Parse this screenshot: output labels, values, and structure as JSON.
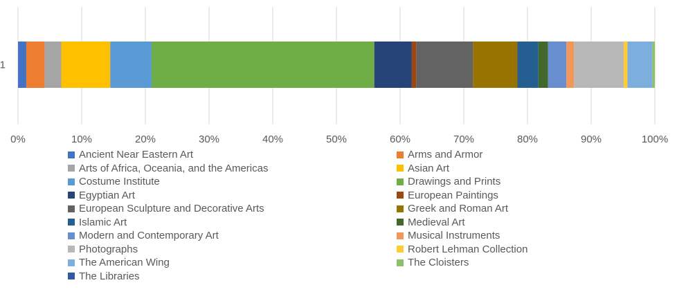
{
  "chart_data": {
    "type": "bar",
    "orientation": "horizontal",
    "stacking": "percent",
    "categories": [
      "1"
    ],
    "x_ticks": [
      "0%",
      "10%",
      "20%",
      "30%",
      "40%",
      "50%",
      "60%",
      "70%",
      "80%",
      "90%",
      "100%"
    ],
    "xlim": [
      0,
      100
    ],
    "grid": true,
    "legend_position": "bottom",
    "series": [
      {
        "name": "Ancient Near Eastern Art",
        "values": [
          1.3
        ],
        "color": "#4472C4"
      },
      {
        "name": "Arms and Armor",
        "values": [
          2.9
        ],
        "color": "#ED7D31"
      },
      {
        "name": "Arts of Africa, Oceania, and the Americas",
        "values": [
          2.6
        ],
        "color": "#A5A5A5"
      },
      {
        "name": "Asian Art",
        "values": [
          7.7
        ],
        "color": "#FFC000"
      },
      {
        "name": "Costume Institute",
        "values": [
          6.5
        ],
        "color": "#5B9BD5"
      },
      {
        "name": "Drawings and Prints",
        "values": [
          35.0
        ],
        "color": "#70AD47"
      },
      {
        "name": "Egyptian Art",
        "values": [
          5.9
        ],
        "color": "#264478"
      },
      {
        "name": "European Paintings",
        "values": [
          0.7
        ],
        "color": "#9E480E"
      },
      {
        "name": "European Sculpture and Decorative Arts",
        "values": [
          8.9
        ],
        "color": "#636363"
      },
      {
        "name": "Greek and Roman Art",
        "values": [
          7.0
        ],
        "color": "#997300"
      },
      {
        "name": "Islamic Art",
        "values": [
          3.3
        ],
        "color": "#255E91"
      },
      {
        "name": "Medieval Art",
        "values": [
          1.5
        ],
        "color": "#43682B"
      },
      {
        "name": "Modern and Contemporary Art",
        "values": [
          2.9
        ],
        "color": "#698ED0"
      },
      {
        "name": "Musical Instruments",
        "values": [
          1.2
        ],
        "color": "#F1975A"
      },
      {
        "name": "Photographs",
        "values": [
          7.8
        ],
        "color": "#B7B7B7"
      },
      {
        "name": "Robert Lehman Collection",
        "values": [
          0.6
        ],
        "color": "#FFCD33"
      },
      {
        "name": "The American Wing",
        "values": [
          3.9
        ],
        "color": "#7CAFDD"
      },
      {
        "name": "The Cloisters",
        "values": [
          0.4
        ],
        "color": "#8CC168"
      },
      {
        "name": "The Libraries",
        "values": [
          0.0
        ],
        "color": "#335AA1"
      }
    ]
  }
}
